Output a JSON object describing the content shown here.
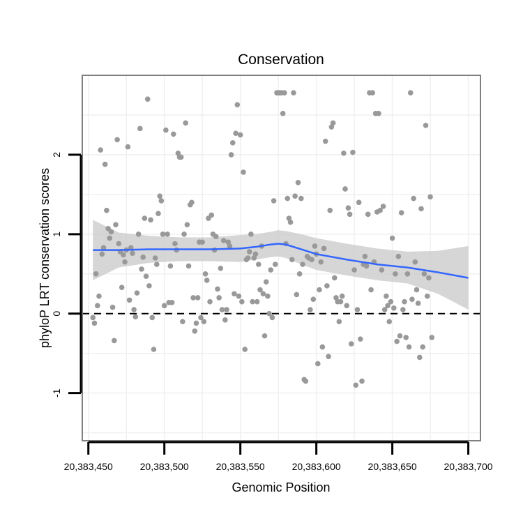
{
  "chart_data": {
    "type": "scatter",
    "title": "Conservation",
    "xlabel": "Genomic Position",
    "ylabel": "phyloP LRT conservation scores",
    "xlim": [
      20383446,
      20383708
    ],
    "ylim": [
      -1.6,
      3.0
    ],
    "x_ticks": [
      20383450,
      20383500,
      20383550,
      20383600,
      20383650,
      20383700
    ],
    "x_tick_labels": [
      "20,383,450",
      "20,383,500",
      "20,383,550",
      "20,383,600",
      "20,383,650",
      "20,383,700"
    ],
    "y_ticks": [
      -1,
      0,
      1,
      2
    ],
    "y_tick_labels": [
      "-1",
      "0",
      "1",
      "2"
    ],
    "grid": true,
    "legend": "none",
    "reference_line": {
      "y": 0,
      "style": "dashed"
    },
    "colors": {
      "points": "#999999",
      "smooth": "#3366ff",
      "band": "#cccccc",
      "panel_border": "#7f7f7f",
      "grid": "#f0f0f0"
    },
    "points": [
      [
        20383453,
        -0.05
      ],
      [
        20383454,
        -0.12
      ],
      [
        20383455,
        0.5
      ],
      [
        20383456,
        0.1
      ],
      [
        20383457,
        0.22
      ],
      [
        20383458,
        2.06
      ],
      [
        20383459,
        0.75
      ],
      [
        20383460,
        0.83
      ],
      [
        20383461,
        1.88
      ],
      [
        20383462,
        1.3
      ],
      [
        20383463,
        1.07
      ],
      [
        20383464,
        0.95
      ],
      [
        20383465,
        1.03
      ],
      [
        20383466,
        0.08
      ],
      [
        20383467,
        -0.34
      ],
      [
        20383468,
        1.12
      ],
      [
        20383469,
        2.19
      ],
      [
        20383470,
        0.88
      ],
      [
        20383471,
        0.78
      ],
      [
        20383472,
        0.33
      ],
      [
        20383473,
        0.74
      ],
      [
        20383474,
        0.65
      ],
      [
        20383475,
        0.8
      ],
      [
        20383476,
        2.1
      ],
      [
        20383477,
        0.17
      ],
      [
        20383478,
        0.83
      ],
      [
        20383479,
        0.76
      ],
      [
        20383480,
        0.05
      ],
      [
        20383481,
        -0.04
      ],
      [
        20383482,
        0.26
      ],
      [
        20383483,
        1.0
      ],
      [
        20383484,
        2.33
      ],
      [
        20383485,
        0.56
      ],
      [
        20383486,
        0.71
      ],
      [
        20383487,
        1.2
      ],
      [
        20383488,
        0.47
      ],
      [
        20383489,
        2.7
      ],
      [
        20383490,
        0.35
      ],
      [
        20383491,
        1.18
      ],
      [
        20383492,
        -0.05
      ],
      [
        20383493,
        -0.45
      ],
      [
        20383494,
        0.7
      ],
      [
        20383495,
        0.62
      ],
      [
        20383496,
        1.26
      ],
      [
        20383497,
        1.48
      ],
      [
        20383498,
        1.42
      ],
      [
        20383499,
        1.0
      ],
      [
        20383500,
        0.1
      ],
      [
        20383501,
        2.31
      ],
      [
        20383502,
        1.0
      ],
      [
        20383503,
        0.14
      ],
      [
        20383504,
        0.6
      ],
      [
        20383505,
        0.14
      ],
      [
        20383506,
        2.26
      ],
      [
        20383507,
        0.88
      ],
      [
        20383508,
        0.8
      ],
      [
        20383509,
        2.02
      ],
      [
        20383510,
        1.97
      ],
      [
        20383511,
        1.97
      ],
      [
        20383512,
        -0.1
      ],
      [
        20383513,
        1.0
      ],
      [
        20383514,
        2.4
      ],
      [
        20383515,
        1.12
      ],
      [
        20383516,
        0.6
      ],
      [
        20383517,
        1.37
      ],
      [
        20383518,
        1.4
      ],
      [
        20383519,
        0.2
      ],
      [
        20383520,
        -0.22
      ],
      [
        20383521,
        -0.12
      ],
      [
        20383522,
        0.2
      ],
      [
        20383523,
        0.9
      ],
      [
        20383524,
        -0.05
      ],
      [
        20383525,
        0.9
      ],
      [
        20383526,
        -0.1
      ],
      [
        20383527,
        0.5
      ],
      [
        20383528,
        0.42
      ],
      [
        20383529,
        1.2
      ],
      [
        20383530,
        0.15
      ],
      [
        20383531,
        1.24
      ],
      [
        20383532,
        1.0
      ],
      [
        20383533,
        0.8
      ],
      [
        20383534,
        0.97
      ],
      [
        20383535,
        0.31
      ],
      [
        20383536,
        0.2
      ],
      [
        20383537,
        0.57
      ],
      [
        20383538,
        0.05
      ],
      [
        20383539,
        0.92
      ],
      [
        20383540,
        -0.08
      ],
      [
        20383541,
        0.05
      ],
      [
        20383542,
        0.9
      ],
      [
        20383543,
        0.85
      ],
      [
        20383544,
        2.0
      ],
      [
        20383545,
        2.15
      ],
      [
        20383546,
        0.25
      ],
      [
        20383547,
        2.27
      ],
      [
        20383548,
        2.63
      ],
      [
        20383549,
        0.22
      ],
      [
        20383550,
        2.25
      ],
      [
        20383551,
        0.15
      ],
      [
        20383552,
        1.78
      ],
      [
        20383553,
        -0.45
      ],
      [
        20383554,
        0.68
      ],
      [
        20383555,
        0.7
      ],
      [
        20383556,
        0.78
      ],
      [
        20383557,
        1.0
      ],
      [
        20383558,
        0.15
      ],
      [
        20383559,
        0.7
      ],
      [
        20383560,
        0.75
      ],
      [
        20383561,
        0.15
      ],
      [
        20383562,
        0.62
      ],
      [
        20383563,
        0.3
      ],
      [
        20383564,
        0.85
      ],
      [
        20383565,
        0.25
      ],
      [
        20383566,
        -0.28
      ],
      [
        20383567,
        0.4
      ],
      [
        20383568,
        0.22
      ],
      [
        20383569,
        0.0
      ],
      [
        20383570,
        0.55
      ],
      [
        20383571,
        -0.05
      ],
      [
        20383572,
        1.42
      ],
      [
        20383573,
        0.62
      ],
      [
        20383574,
        2.78
      ],
      [
        20383575,
        2.78
      ],
      [
        20383576,
        2.78
      ],
      [
        20383577,
        2.78
      ],
      [
        20383578,
        2.52
      ],
      [
        20383579,
        2.78
      ],
      [
        20383580,
        0.88
      ],
      [
        20383581,
        1.45
      ],
      [
        20383582,
        1.2
      ],
      [
        20383583,
        1.15
      ],
      [
        20383584,
        0.68
      ],
      [
        20383585,
        2.78
      ],
      [
        20383586,
        1.48
      ],
      [
        20383587,
        0.24
      ],
      [
        20383588,
        1.65
      ],
      [
        20383589,
        0.5
      ],
      [
        20383590,
        1.45
      ],
      [
        20383591,
        0.62
      ],
      [
        20383592,
        -0.83
      ],
      [
        20383593,
        -0.85
      ],
      [
        20383594,
        0.72
      ],
      [
        20383595,
        0.7
      ],
      [
        20383596,
        0.05
      ],
      [
        20383597,
        0.68
      ],
      [
        20383598,
        0.18
      ],
      [
        20383599,
        0.85
      ],
      [
        20383600,
        0.75
      ],
      [
        20383601,
        -0.63
      ],
      [
        20383602,
        0.3
      ],
      [
        20383603,
        0.65
      ],
      [
        20383604,
        -0.42
      ],
      [
        20383605,
        0.82
      ],
      [
        20383606,
        2.17
      ],
      [
        20383607,
        0.35
      ],
      [
        20383608,
        -0.54
      ],
      [
        20383609,
        1.3
      ],
      [
        20383610,
        2.35
      ],
      [
        20383611,
        2.4
      ],
      [
        20383612,
        0.45
      ],
      [
        20383613,
        0.2
      ],
      [
        20383614,
        0.15
      ],
      [
        20383615,
        -0.1
      ],
      [
        20383616,
        0.15
      ],
      [
        20383617,
        0.22
      ],
      [
        20383618,
        2.02
      ],
      [
        20383619,
        1.57
      ],
      [
        20383620,
        0.1
      ],
      [
        20383621,
        1.33
      ],
      [
        20383622,
        1.25
      ],
      [
        20383623,
        -0.38
      ],
      [
        20383624,
        2.03
      ],
      [
        20383625,
        0.55
      ],
      [
        20383626,
        -0.9
      ],
      [
        20383627,
        0.05
      ],
      [
        20383628,
        1.4
      ],
      [
        20383629,
        -0.32
      ],
      [
        20383630,
        -0.85
      ],
      [
        20383631,
        0.62
      ],
      [
        20383632,
        0.72
      ],
      [
        20383633,
        0.6
      ],
      [
        20383634,
        1.25
      ],
      [
        20383635,
        2.78
      ],
      [
        20383636,
        0.3
      ],
      [
        20383637,
        2.78
      ],
      [
        20383638,
        0.65
      ],
      [
        20383639,
        2.52
      ],
      [
        20383640,
        1.28
      ],
      [
        20383641,
        2.52
      ],
      [
        20383642,
        1.3
      ],
      [
        20383643,
        0.55
      ],
      [
        20383644,
        1.35
      ],
      [
        20383645,
        0.05
      ],
      [
        20383646,
        0.22
      ],
      [
        20383647,
        0.1
      ],
      [
        20383648,
        -0.1
      ],
      [
        20383649,
        0.15
      ],
      [
        20383650,
        0.95
      ],
      [
        20383651,
        0.07
      ],
      [
        20383652,
        0.5
      ],
      [
        20383653,
        -0.35
      ],
      [
        20383654,
        0.72
      ],
      [
        20383655,
        -0.28
      ],
      [
        20383656,
        1.27
      ],
      [
        20383657,
        0.05
      ],
      [
        20383658,
        0.15
      ],
      [
        20383659,
        -0.3
      ],
      [
        20383660,
        0.5
      ],
      [
        20383661,
        -0.42
      ],
      [
        20383662,
        2.78
      ],
      [
        20383663,
        0.18
      ],
      [
        20383664,
        1.45
      ],
      [
        20383665,
        0.65
      ],
      [
        20383666,
        0.3
      ],
      [
        20383667,
        0.13
      ],
      [
        20383668,
        -0.55
      ],
      [
        20383669,
        1.32
      ],
      [
        20383670,
        -0.42
      ],
      [
        20383671,
        0.5
      ],
      [
        20383672,
        2.37
      ],
      [
        20383673,
        0.22
      ],
      [
        20383674,
        0.45
      ],
      [
        20383675,
        1.47
      ],
      [
        20383676,
        -0.3
      ]
    ],
    "smooth": {
      "x": [
        20383453,
        20383470,
        20383490,
        20383510,
        20383530,
        20383550,
        20383560,
        20383570,
        20383575,
        20383580,
        20383590,
        20383600,
        20383620,
        20383640,
        20383660,
        20383680,
        20383700
      ],
      "y": [
        0.8,
        0.8,
        0.81,
        0.81,
        0.81,
        0.82,
        0.84,
        0.87,
        0.88,
        0.87,
        0.81,
        0.75,
        0.68,
        0.62,
        0.58,
        0.52,
        0.45
      ],
      "lower": [
        0.42,
        0.58,
        0.64,
        0.66,
        0.66,
        0.65,
        0.68,
        0.71,
        0.72,
        0.7,
        0.62,
        0.55,
        0.48,
        0.42,
        0.38,
        0.25,
        0.05
      ],
      "upper": [
        1.18,
        1.02,
        0.98,
        0.96,
        0.96,
        0.99,
        1.0,
        1.03,
        1.05,
        1.04,
        1.0,
        0.95,
        0.88,
        0.82,
        0.78,
        0.79,
        0.85
      ]
    }
  }
}
